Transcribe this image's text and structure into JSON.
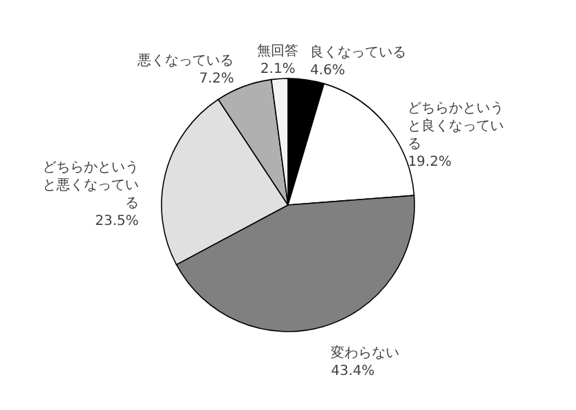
{
  "chart_data": {
    "type": "pie",
    "categories": [
      "良くなっている",
      "どちらかというと良くなっている",
      "変わらない",
      "どちらかというと悪くなっている",
      "悪くなっている",
      "無回答"
    ],
    "values": [
      4.6,
      19.2,
      43.4,
      23.5,
      7.2,
      2.1
    ],
    "value_labels": [
      "4.6%",
      "19.2%",
      "43.4%",
      "23.5%",
      "7.2%",
      "2.1%"
    ],
    "colors": [
      "#000000",
      "#ffffff",
      "#808080",
      "#e0e0e0",
      "#b0b0b0",
      "#f4f4f4"
    ],
    "legend": false
  }
}
